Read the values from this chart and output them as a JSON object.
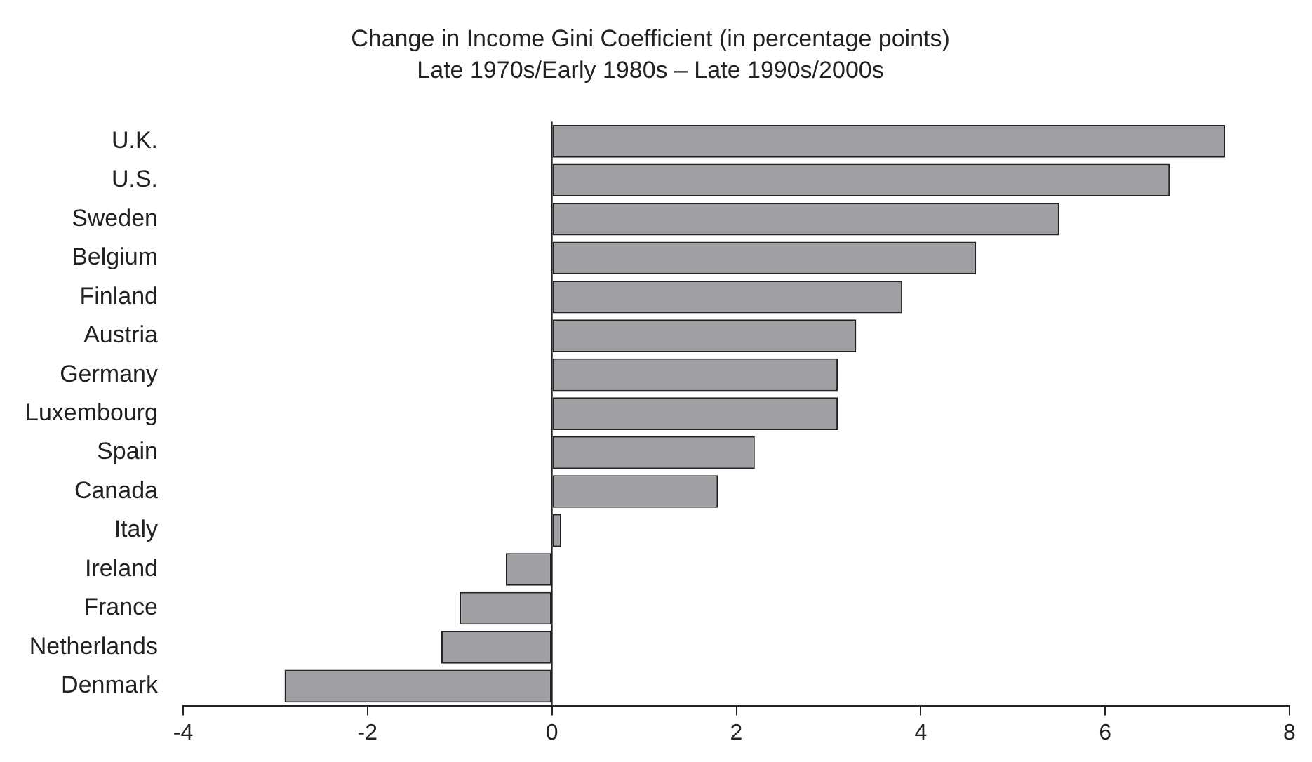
{
  "chart_data": {
    "type": "bar",
    "orientation": "horizontal",
    "title": "Change in Income Gini Coefficient (in percentage points)",
    "subtitle": "Late 1970s/Early 1980s – Late 1990s/2000s",
    "categories": [
      "U.K.",
      "U.S.",
      "Sweden",
      "Belgium",
      "Finland",
      "Austria",
      "Germany",
      "Luxembourg",
      "Spain",
      "Canada",
      "Italy",
      "Ireland",
      "France",
      "Netherlands",
      "Denmark"
    ],
    "values": [
      7.3,
      6.7,
      5.5,
      4.6,
      3.8,
      3.3,
      3.1,
      3.1,
      2.2,
      1.8,
      0.1,
      -0.5,
      -1.0,
      -1.2,
      -2.9
    ],
    "color": "#a0a0a4",
    "ref_lines": [
      {
        "axis": "x",
        "value": 0
      }
    ],
    "xlim": [
      -4,
      8
    ],
    "xticks": [
      -4,
      -2,
      0,
      2,
      4,
      6,
      8
    ],
    "grid": false,
    "legend": false
  }
}
